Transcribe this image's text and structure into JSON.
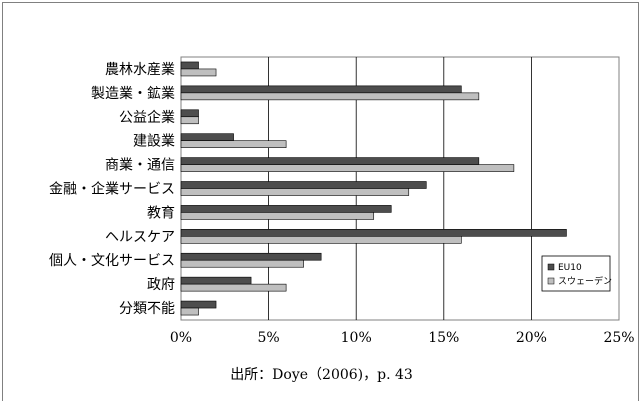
{
  "chart_data": {
    "type": "bar",
    "orientation": "horizontal",
    "categories": [
      "農林水産業",
      "製造業・鉱業",
      "公益企業",
      "建設業",
      "商業・通信",
      "金融・企業サービス",
      "教育",
      "ヘルスケア",
      "個人・文化サービス",
      "政府",
      "分類不能"
    ],
    "series": [
      {
        "name": "EU10",
        "color": "#4d4d4d",
        "values": [
          1,
          16,
          1,
          3,
          17,
          14,
          12,
          22,
          8,
          4,
          2
        ]
      },
      {
        "name": "スウェーデン",
        "color": "#bfbfbf",
        "values": [
          2,
          17,
          1,
          6,
          19,
          13,
          11,
          16,
          7,
          6,
          1
        ]
      }
    ],
    "xlim": [
      0,
      25
    ],
    "xticks": [
      0,
      5,
      10,
      15,
      20,
      25
    ],
    "xtick_labels": [
      "0%",
      "5%",
      "10%",
      "15%",
      "20%",
      "25%"
    ],
    "grid": true,
    "legend_position": "right"
  },
  "source_note": "出所：Doye（2006)，p. 43"
}
